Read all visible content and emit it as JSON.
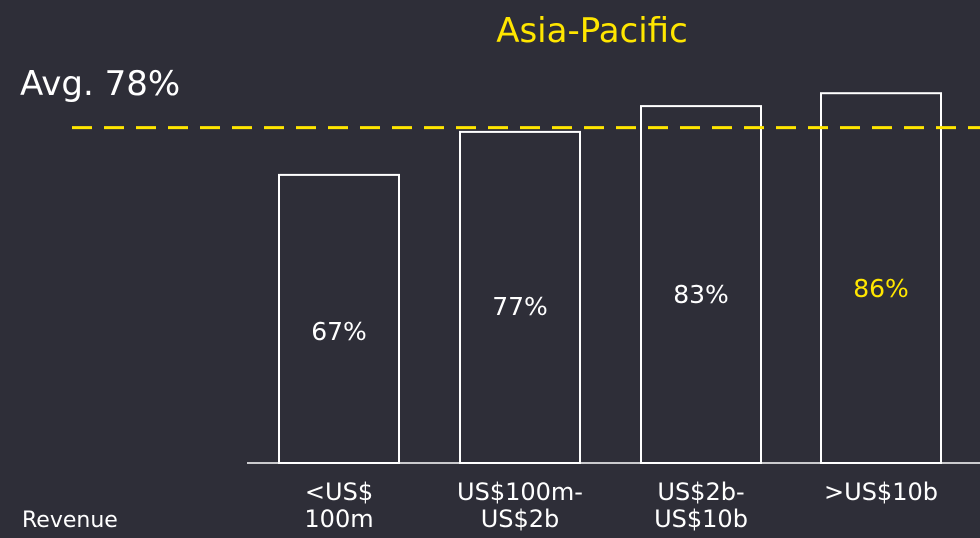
{
  "chart_data": {
    "type": "bar",
    "title": "Asia-Pacific",
    "average_label": "Avg. 78%",
    "average_value": 78,
    "xlabel": "Revenue",
    "ylabel": "",
    "ylim": [
      0,
      100
    ],
    "categories": [
      [
        "<US$",
        "100m"
      ],
      [
        "US$100m-",
        "US$2b"
      ],
      [
        "US$2b-",
        "US$10b"
      ],
      [
        ">US$10b"
      ]
    ],
    "values": [
      67,
      77,
      83,
      86
    ],
    "data_labels": [
      "67%",
      "77%",
      "83%",
      "86%"
    ],
    "highlight_index": 3,
    "grid": false,
    "legend": "none"
  },
  "colors": {
    "background": "#2e2e38",
    "accent": "#ffe600",
    "bar_outline": "#ffffff",
    "text": "#ffffff"
  }
}
